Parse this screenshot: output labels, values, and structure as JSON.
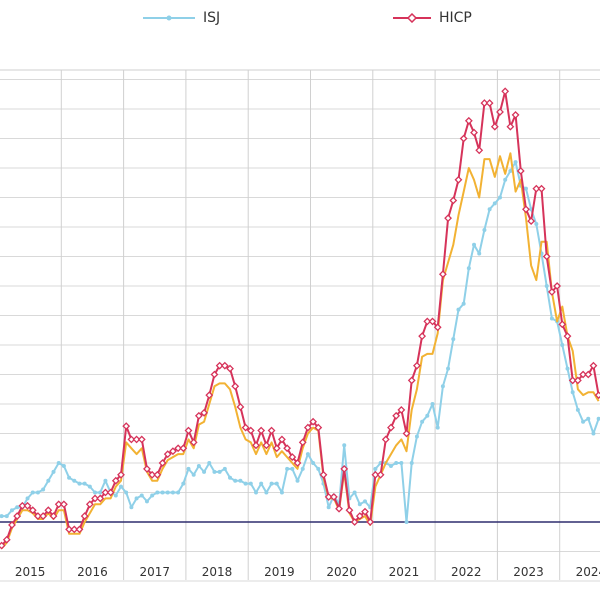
{
  "chart_data": {
    "type": "line",
    "title": "",
    "xlabel": "",
    "ylabel": "",
    "x_start": "2015-01",
    "frequency": "monthly",
    "x_tick_labels": [
      "2015",
      "2016",
      "2017",
      "2018",
      "2019",
      "2020",
      "2021",
      "2022",
      "2023",
      "2024"
    ],
    "ylim": [
      -2,
      15.3
    ],
    "y_tick_labels_visible": false,
    "grid": true,
    "legend_position": "top",
    "reference_line": 0,
    "series": [
      {
        "name": "ISJ",
        "color": "#8fd0e8",
        "marker": "dot",
        "values": [
          0.2,
          0.2,
          0.4,
          0.5,
          0.5,
          0.8,
          1.0,
          1.0,
          1.1,
          1.4,
          1.7,
          2.0,
          1.9,
          1.5,
          1.4,
          1.3,
          1.3,
          1.2,
          1.0,
          1.0,
          1.4,
          1.0,
          0.9,
          1.2,
          1.0,
          0.5,
          0.8,
          0.9,
          0.7,
          0.9,
          1.0,
          1.0,
          1.0,
          1.0,
          1.0,
          1.3,
          1.8,
          1.6,
          1.9,
          1.7,
          2.0,
          1.7,
          1.7,
          1.8,
          1.5,
          1.4,
          1.4,
          1.3,
          1.3,
          1.0,
          1.3,
          1.0,
          1.3,
          1.3,
          1.0,
          1.8,
          1.8,
          1.4,
          1.8,
          2.3,
          2.0,
          1.8,
          1.3,
          0.5,
          0.9,
          0.6,
          2.6,
          0.8,
          1.0,
          0.6,
          0.7,
          0.5,
          1.8,
          2.0,
          2.0,
          1.9,
          2.0,
          2.0,
          0.0,
          2.0,
          2.9,
          3.4,
          3.6,
          4.0,
          3.2,
          4.6,
          5.2,
          6.2,
          7.2,
          7.4,
          8.6,
          9.4,
          9.1,
          9.9,
          10.6,
          10.8,
          11.0,
          11.6,
          11.9,
          12.2,
          11.4,
          11.3,
          10.6,
          10.1,
          9.1,
          8.0,
          6.9,
          6.8,
          6.0,
          5.2,
          4.4,
          3.8,
          3.4,
          3.5,
          3.0,
          3.5
        ]
      },
      {
        "name": "",
        "color": "#f2b233",
        "marker": "none",
        "values": [
          -0.9,
          -0.7,
          -0.2,
          0.1,
          0.4,
          0.4,
          0.3,
          0.1,
          0.1,
          0.3,
          0.1,
          0.4,
          0.4,
          -0.4,
          -0.4,
          -0.4,
          0.0,
          0.3,
          0.6,
          0.6,
          0.8,
          0.8,
          1.2,
          1.4,
          2.7,
          2.5,
          2.3,
          2.5,
          1.7,
          1.4,
          1.4,
          1.8,
          2.1,
          2.2,
          2.3,
          2.3,
          2.8,
          2.5,
          3.3,
          3.4,
          4.0,
          4.6,
          4.7,
          4.7,
          4.5,
          3.9,
          3.2,
          2.8,
          2.7,
          2.3,
          2.7,
          2.3,
          2.7,
          2.2,
          2.4,
          2.2,
          2.0,
          1.8,
          2.5,
          3.0,
          3.2,
          3.1,
          1.5,
          0.8,
          0.8,
          0.4,
          1.7,
          0.3,
          0.0,
          0.1,
          0.2,
          -0.1,
          1.2,
          1.6,
          2.0,
          2.3,
          2.6,
          2.8,
          2.4,
          3.8,
          4.5,
          5.6,
          5.7,
          5.7,
          6.4,
          8.2,
          8.8,
          9.4,
          10.4,
          11.2,
          12.0,
          11.6,
          11.0,
          12.3,
          12.3,
          11.7,
          12.4,
          11.8,
          12.5,
          11.2,
          11.6,
          10.3,
          8.7,
          8.2,
          9.5,
          9.5,
          7.8,
          6.8,
          7.3,
          6.3,
          5.8,
          4.5,
          4.3,
          4.4,
          4.4,
          4.1
        ]
      },
      {
        "name": "HICP",
        "color": "#d6335a",
        "marker": "diamond",
        "values": [
          -0.8,
          -0.6,
          -0.1,
          0.2,
          0.55,
          0.55,
          0.4,
          0.2,
          0.2,
          0.4,
          0.2,
          0.6,
          0.6,
          -0.25,
          -0.25,
          -0.25,
          0.2,
          0.6,
          0.8,
          0.8,
          1.0,
          1.0,
          1.4,
          1.6,
          3.25,
          2.8,
          2.8,
          2.8,
          1.8,
          1.6,
          1.6,
          2.0,
          2.3,
          2.4,
          2.5,
          2.5,
          3.1,
          2.7,
          3.6,
          3.7,
          4.3,
          5.0,
          5.3,
          5.3,
          5.2,
          4.6,
          3.9,
          3.2,
          3.1,
          2.6,
          3.1,
          2.6,
          3.1,
          2.5,
          2.8,
          2.5,
          2.2,
          2.0,
          2.7,
          3.2,
          3.4,
          3.2,
          1.6,
          0.85,
          0.85,
          0.45,
          1.8,
          0.4,
          0.0,
          0.2,
          0.35,
          0.0,
          1.6,
          1.6,
          2.8,
          3.2,
          3.6,
          3.8,
          3.0,
          4.8,
          5.3,
          6.3,
          6.8,
          6.8,
          6.6,
          8.4,
          10.3,
          10.9,
          11.6,
          13.0,
          13.6,
          13.2,
          12.6,
          14.2,
          14.2,
          13.4,
          13.9,
          14.6,
          13.4,
          13.8,
          11.9,
          10.6,
          10.2,
          11.3,
          11.3,
          9.0,
          7.8,
          8.0,
          6.7,
          6.3,
          4.8,
          4.8,
          5.0,
          5.0,
          5.3,
          4.3
        ]
      }
    ]
  }
}
